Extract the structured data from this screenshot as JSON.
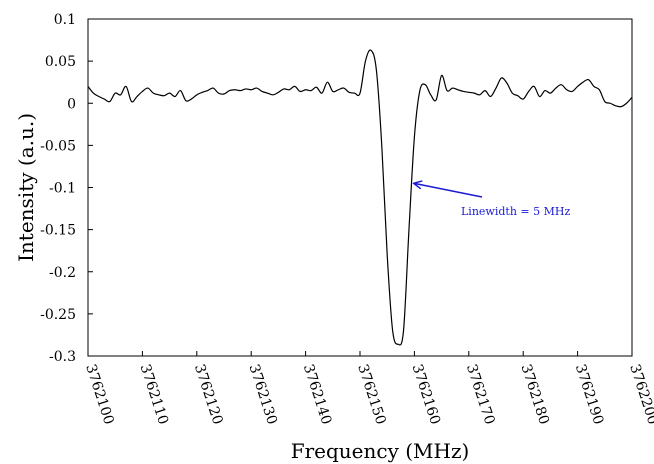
{
  "chart_data": {
    "type": "line",
    "title": "",
    "xlabel": "Frequency (MHz)",
    "ylabel": "Intensity (a.u.)",
    "xlim": [
      3762100,
      3762200
    ],
    "ylim": [
      -0.3,
      0.1
    ],
    "x_ticks": [
      3762100,
      3762110,
      3762120,
      3762130,
      3762140,
      3762150,
      3762160,
      3762170,
      3762180,
      3762190,
      3762200
    ],
    "x_tick_labels": [
      "3762100",
      "3762110",
      "3762120",
      "3762130",
      "3762140",
      "3762150",
      "3762160",
      "3762170",
      "3762180",
      "3762190",
      "3762200"
    ],
    "y_ticks": [
      0.1,
      0.05,
      0,
      -0.05,
      -0.1,
      -0.15,
      -0.2,
      -0.25,
      -0.3
    ],
    "y_tick_labels": [
      "0.1",
      "0.05",
      "0",
      "-0.05",
      "-0.1",
      "-0.15",
      "-0.2",
      "-0.25",
      "-0.3"
    ],
    "grid": false,
    "line_color": "#000000",
    "series": [
      {
        "x": [
          3762100,
          3762101,
          3762102,
          3762103,
          3762104,
          3762105,
          3762106,
          3762107,
          3762108,
          3762109,
          3762110,
          3762111,
          3762112,
          3762113,
          3762114,
          3762115,
          3762116,
          3762117,
          3762118,
          3762119,
          3762120,
          3762121,
          3762122,
          3762123,
          3762124,
          3762125,
          3762126,
          3762127,
          3762128,
          3762129,
          3762130,
          3762131,
          3762132,
          3762133,
          3762134,
          3762135,
          3762136,
          3762137,
          3762138,
          3762139,
          3762140,
          3762141,
          3762142,
          3762143,
          3762144,
          3762145,
          3762146,
          3762147,
          3762148,
          3762149,
          3762150,
          3762151,
          3762152,
          3762153,
          3762154,
          3762155,
          3762156,
          3762157,
          3762158,
          3762159,
          3762160,
          3762161,
          3762162,
          3762163,
          3762164,
          3762165,
          3762166,
          3762167,
          3762168,
          3762169,
          3762170,
          3762171,
          3762172,
          3762173,
          3762174,
          3762175,
          3762176,
          3762177,
          3762178,
          3762179,
          3762180,
          3762181,
          3762182,
          3762183,
          3762184,
          3762185,
          3762186,
          3762187,
          3762188,
          3762189,
          3762190,
          3762191,
          3762192,
          3762193,
          3762194,
          3762195,
          3762196,
          3762197,
          3762198,
          3762199,
          3762200
        ],
        "y": [
          0.02,
          0.012,
          0.008,
          0.005,
          0.002,
          0.012,
          0.01,
          0.02,
          0.002,
          0.008,
          0.014,
          0.018,
          0.012,
          0.01,
          0.009,
          0.012,
          0.008,
          0.015,
          0.003,
          0.005,
          0.01,
          0.013,
          0.015,
          0.018,
          0.012,
          0.011,
          0.015,
          0.016,
          0.015,
          0.017,
          0.016,
          0.018,
          0.014,
          0.012,
          0.01,
          0.013,
          0.017,
          0.016,
          0.02,
          0.014,
          0.016,
          0.015,
          0.019,
          0.012,
          0.025,
          0.014,
          0.016,
          0.018,
          0.013,
          0.012,
          0.012,
          0.05,
          0.063,
          0.04,
          -0.05,
          -0.18,
          -0.27,
          -0.286,
          -0.27,
          -0.15,
          -0.04,
          0.015,
          0.022,
          0.01,
          0.004,
          0.033,
          0.015,
          0.018,
          0.016,
          0.014,
          0.013,
          0.012,
          0.01,
          0.015,
          0.008,
          0.018,
          0.03,
          0.024,
          0.012,
          0.009,
          0.005,
          0.014,
          0.02,
          0.008,
          0.015,
          0.012,
          0.018,
          0.022,
          0.016,
          0.014,
          0.02,
          0.025,
          0.028,
          0.02,
          0.016,
          0.002,
          0.0,
          -0.003,
          -0.004,
          0.0,
          0.007
        ]
      }
    ],
    "annotation": {
      "text": "Linewidth = 5 MHz",
      "color": "#1a1ad6",
      "points_to": [
        3762159.5,
        -0.095
      ]
    }
  }
}
